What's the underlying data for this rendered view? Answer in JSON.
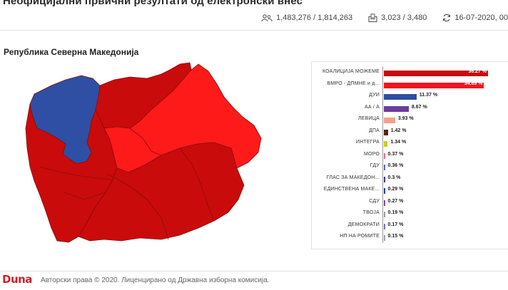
{
  "header": {
    "title": "Неофицијални првични резултати од електронски внес",
    "stats": {
      "voters": "1,483,276 / 1,814,263",
      "stations": "3,023 / 3,480",
      "updated": "16-07-2020, 00"
    }
  },
  "region": {
    "title": "Република Северна Македонија"
  },
  "colors": {
    "winner_dark": "#c90b0b",
    "winner_light": "#ff1a1a",
    "dui": "#2e4fa3"
  },
  "results": [
    {
      "label": "КОАЛИЦИЈА МОЖЕМЕ",
      "pct_label": "36.27 %",
      "pct": 36.27,
      "color": "#c90b0b"
    },
    {
      "label": "ВМРО - ДПМНЕ и д...",
      "pct_label": "34.89 %",
      "pct": 34.89,
      "color": "#f0141e"
    },
    {
      "label": "ДУИ",
      "pct_label": "11.37 %",
      "pct": 11.37,
      "color": "#2e4fa3"
    },
    {
      "label": "АА / А",
      "pct_label": "8.67 %",
      "pct": 8.67,
      "color": "#6a3d9a"
    },
    {
      "label": "ЛЕВИЦА",
      "pct_label": "3.93 %",
      "pct": 3.93,
      "color": "#f4a08a"
    },
    {
      "label": "ДПА",
      "pct_label": "1.42 %",
      "pct": 1.42,
      "color": "#4a2a12"
    },
    {
      "label": "ИНТЕГРА",
      "pct_label": "1.34 %",
      "pct": 1.34,
      "color": "#c8cc1e"
    },
    {
      "label": "МОРО",
      "pct_label": "0.37 %",
      "pct": 0.37,
      "color": "#e86a8a"
    },
    {
      "label": "ГДУ",
      "pct_label": "0.36 %",
      "pct": 0.36,
      "color": "#5566aa"
    },
    {
      "label": "ГЛАС ЗА МАКЕДОН...",
      "pct_label": "0.3 %",
      "pct": 0.3,
      "color": "#333399"
    },
    {
      "label": "ЕДИНСТВЕНА МАКЕ...",
      "pct_label": "0.29 %",
      "pct": 0.29,
      "color": "#1f3f8f"
    },
    {
      "label": "СДУ",
      "pct_label": "0.27 %",
      "pct": 0.27,
      "color": "#7a4a8a"
    },
    {
      "label": "ТВОЈА",
      "pct_label": "0.19 %",
      "pct": 0.19,
      "color": "#999999"
    },
    {
      "label": "ДЕМОКРАТИ",
      "pct_label": "0.17 %",
      "pct": 0.17,
      "color": "#6f6fc0"
    },
    {
      "label": "НП НА РОМИТЕ",
      "pct_label": "0.15 %",
      "pct": 0.15,
      "color": "#9aa0b8"
    }
  ],
  "footer": {
    "logo": "Duna",
    "copyright": "Авторски права © 2020. Лиценцирано од Државна изборна комисија."
  }
}
